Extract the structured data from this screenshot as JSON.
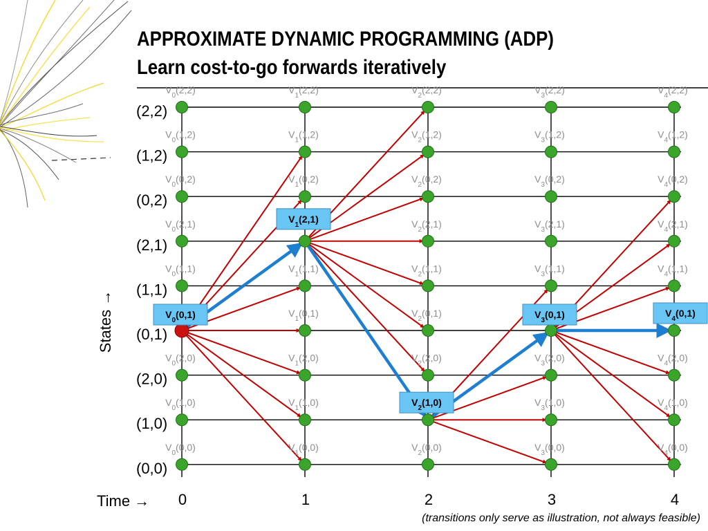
{
  "title": {
    "line1": "APPROXIMATE DYNAMIC PROGRAMMING (ADP)",
    "line2": "Learn cost-to-go forwards iteratively"
  },
  "states": [
    "(2,2)",
    "(1,2)",
    "(0,2)",
    "(2,1)",
    "(1,1)",
    "(0,1)",
    "(2,0)",
    "(1,0)",
    "(0,0)"
  ],
  "times": [
    "0",
    "1",
    "2",
    "3",
    "4"
  ],
  "value_label_prefix": "V",
  "axis": {
    "states_label": "States →",
    "time_label": "Time →"
  },
  "footnote": "(transitions only serve as illustration, not always feasible)",
  "colors": {
    "node": "#3aa52a",
    "node_start": "#cc1111",
    "transition": "#c00000",
    "path": "#1e7fd0",
    "highlight_box": "#69c6f4",
    "value_label": "#8c8c8c"
  },
  "start_node": {
    "t": 0,
    "state": "(0,1)"
  },
  "transitions": [
    {
      "from": {
        "t": 0,
        "state": "(0,1)"
      },
      "to": {
        "t": 1,
        "state": "(1,2)"
      }
    },
    {
      "from": {
        "t": 0,
        "state": "(0,1)"
      },
      "to": {
        "t": 1,
        "state": "(0,2)"
      }
    },
    {
      "from": {
        "t": 0,
        "state": "(0,1)"
      },
      "to": {
        "t": 1,
        "state": "(1,1)"
      }
    },
    {
      "from": {
        "t": 0,
        "state": "(0,1)"
      },
      "to": {
        "t": 1,
        "state": "(0,1)"
      }
    },
    {
      "from": {
        "t": 0,
        "state": "(0,1)"
      },
      "to": {
        "t": 1,
        "state": "(2,0)"
      }
    },
    {
      "from": {
        "t": 0,
        "state": "(0,1)"
      },
      "to": {
        "t": 1,
        "state": "(1,0)"
      }
    },
    {
      "from": {
        "t": 0,
        "state": "(0,1)"
      },
      "to": {
        "t": 1,
        "state": "(0,0)"
      }
    },
    {
      "from": {
        "t": 1,
        "state": "(2,1)"
      },
      "to": {
        "t": 2,
        "state": "(2,2)"
      }
    },
    {
      "from": {
        "t": 1,
        "state": "(2,1)"
      },
      "to": {
        "t": 2,
        "state": "(1,2)"
      }
    },
    {
      "from": {
        "t": 1,
        "state": "(2,1)"
      },
      "to": {
        "t": 2,
        "state": "(0,2)"
      }
    },
    {
      "from": {
        "t": 1,
        "state": "(2,1)"
      },
      "to": {
        "t": 2,
        "state": "(2,1)"
      }
    },
    {
      "from": {
        "t": 1,
        "state": "(2,1)"
      },
      "to": {
        "t": 2,
        "state": "(1,1)"
      }
    },
    {
      "from": {
        "t": 1,
        "state": "(2,1)"
      },
      "to": {
        "t": 2,
        "state": "(0,1)"
      }
    },
    {
      "from": {
        "t": 1,
        "state": "(2,1)"
      },
      "to": {
        "t": 2,
        "state": "(2,0)"
      }
    },
    {
      "from": {
        "t": 2,
        "state": "(1,0)"
      },
      "to": {
        "t": 3,
        "state": "(1,1)"
      }
    },
    {
      "from": {
        "t": 2,
        "state": "(1,0)"
      },
      "to": {
        "t": 3,
        "state": "(2,0)"
      }
    },
    {
      "from": {
        "t": 2,
        "state": "(1,0)"
      },
      "to": {
        "t": 3,
        "state": "(1,0)"
      }
    },
    {
      "from": {
        "t": 2,
        "state": "(1,0)"
      },
      "to": {
        "t": 3,
        "state": "(0,0)"
      }
    },
    {
      "from": {
        "t": 3,
        "state": "(0,1)"
      },
      "to": {
        "t": 4,
        "state": "(0,2)"
      }
    },
    {
      "from": {
        "t": 3,
        "state": "(0,1)"
      },
      "to": {
        "t": 4,
        "state": "(2,1)"
      }
    },
    {
      "from": {
        "t": 3,
        "state": "(0,1)"
      },
      "to": {
        "t": 4,
        "state": "(1,1)"
      }
    },
    {
      "from": {
        "t": 3,
        "state": "(0,1)"
      },
      "to": {
        "t": 4,
        "state": "(2,0)"
      }
    },
    {
      "from": {
        "t": 3,
        "state": "(0,1)"
      },
      "to": {
        "t": 4,
        "state": "(1,0)"
      }
    },
    {
      "from": {
        "t": 3,
        "state": "(0,1)"
      },
      "to": {
        "t": 4,
        "state": "(0,0)"
      }
    }
  ],
  "optimal_path": [
    {
      "t": 0,
      "state": "(0,1)"
    },
    {
      "t": 1,
      "state": "(2,1)"
    },
    {
      "t": 2,
      "state": "(1,0)"
    },
    {
      "t": 3,
      "state": "(0,1)"
    },
    {
      "t": 4,
      "state": "(0,1)"
    }
  ],
  "highlighted_labels": [
    {
      "t": 0,
      "state": "(0,1)"
    },
    {
      "t": 1,
      "state": "(2,1)"
    },
    {
      "t": 2,
      "state": "(1,0)"
    },
    {
      "t": 3,
      "state": "(0,1)"
    },
    {
      "t": 4,
      "state": "(0,1)"
    }
  ]
}
